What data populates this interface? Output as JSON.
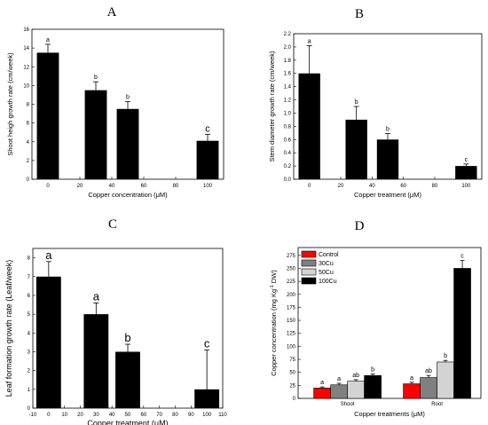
{
  "chart_data": [
    {
      "panel": "A",
      "type": "bar",
      "xlabel": "Copper concentration (μM)",
      "ylabel": "Shoot heigh growth rate (cm/week)",
      "x": [
        0,
        30,
        50,
        100
      ],
      "values": [
        13.5,
        9.5,
        7.5,
        4.1
      ],
      "errors": [
        0.9,
        0.9,
        0.8,
        0.7
      ],
      "letters": [
        "a",
        "b",
        "b",
        "c"
      ],
      "xlim": [
        -10,
        110
      ],
      "xticks": [
        0,
        20,
        40,
        60,
        80,
        100
      ],
      "ylim": [
        0,
        16
      ],
      "yticks": [
        0,
        2,
        4,
        6,
        8,
        10,
        12,
        14,
        16
      ]
    },
    {
      "panel": "B",
      "type": "bar",
      "xlabel": "Copper treatment (μM)",
      "ylabel": "Stem diameter growth rate (cm/week)",
      "x": [
        0,
        30,
        50,
        100
      ],
      "values": [
        1.6,
        0.9,
        0.6,
        0.2
      ],
      "errors": [
        0.42,
        0.2,
        0.09,
        0.03
      ],
      "letters": [
        "a",
        "b",
        "b",
        "c"
      ],
      "xlim": [
        -10,
        110
      ],
      "xticks": [
        0,
        20,
        40,
        60,
        80,
        100
      ],
      "ylim": [
        0,
        2.2
      ],
      "yticks": [
        0.0,
        0.2,
        0.4,
        0.6,
        0.8,
        1.0,
        1.2,
        1.4,
        1.6,
        1.8,
        2.0,
        2.2
      ]
    },
    {
      "panel": "C",
      "type": "bar",
      "xlabel": "Copper treatment (μM)",
      "ylabel": "Leaf formation growth rate (Leaf/week)",
      "x": [
        0,
        30,
        50,
        100
      ],
      "values": [
        7,
        5,
        3,
        1
      ],
      "errors": [
        0.8,
        0.6,
        0.4,
        2.1
      ],
      "letters": [
        "a",
        "a",
        "b",
        "c"
      ],
      "xlim": [
        -10,
        110
      ],
      "xticks": [
        -10,
        0,
        10,
        20,
        30,
        40,
        50,
        60,
        70,
        80,
        90,
        100,
        110
      ],
      "ylim": [
        0,
        8.5
      ],
      "yticks": [
        0,
        1,
        2,
        3,
        4,
        5,
        6,
        7,
        8
      ]
    },
    {
      "panel": "D",
      "type": "bar",
      "xlabel": "Copper treatments (μM)",
      "ylabel": "Copper concentration (mg Kg",
      "ylabel_sup": "-1",
      "ylabel_end": " DW)",
      "categories": [
        "Shoot",
        "Root"
      ],
      "series": [
        {
          "name": "Control",
          "values": [
            20,
            28
          ],
          "errors": [
            2,
            3
          ],
          "letters": [
            "a",
            "a"
          ],
          "color": "#ff0000"
        },
        {
          "name": "30Cu",
          "values": [
            26,
            40
          ],
          "errors": [
            3,
            4
          ],
          "letters": [
            "a",
            "ab"
          ],
          "color": "#808080"
        },
        {
          "name": "50Cu",
          "values": [
            33,
            70
          ],
          "errors": [
            3,
            3
          ],
          "letters": [
            "ab",
            "b"
          ],
          "color": "#d3d3d3"
        },
        {
          "name": "100Cu",
          "values": [
            44,
            250
          ],
          "errors": [
            3,
            15
          ],
          "letters": [
            "b",
            "c"
          ],
          "color": "#000000"
        }
      ],
      "ylim": [
        0,
        290
      ],
      "yticks": [
        0,
        25,
        50,
        75,
        100,
        125,
        150,
        175,
        200,
        225,
        250,
        275
      ]
    }
  ]
}
